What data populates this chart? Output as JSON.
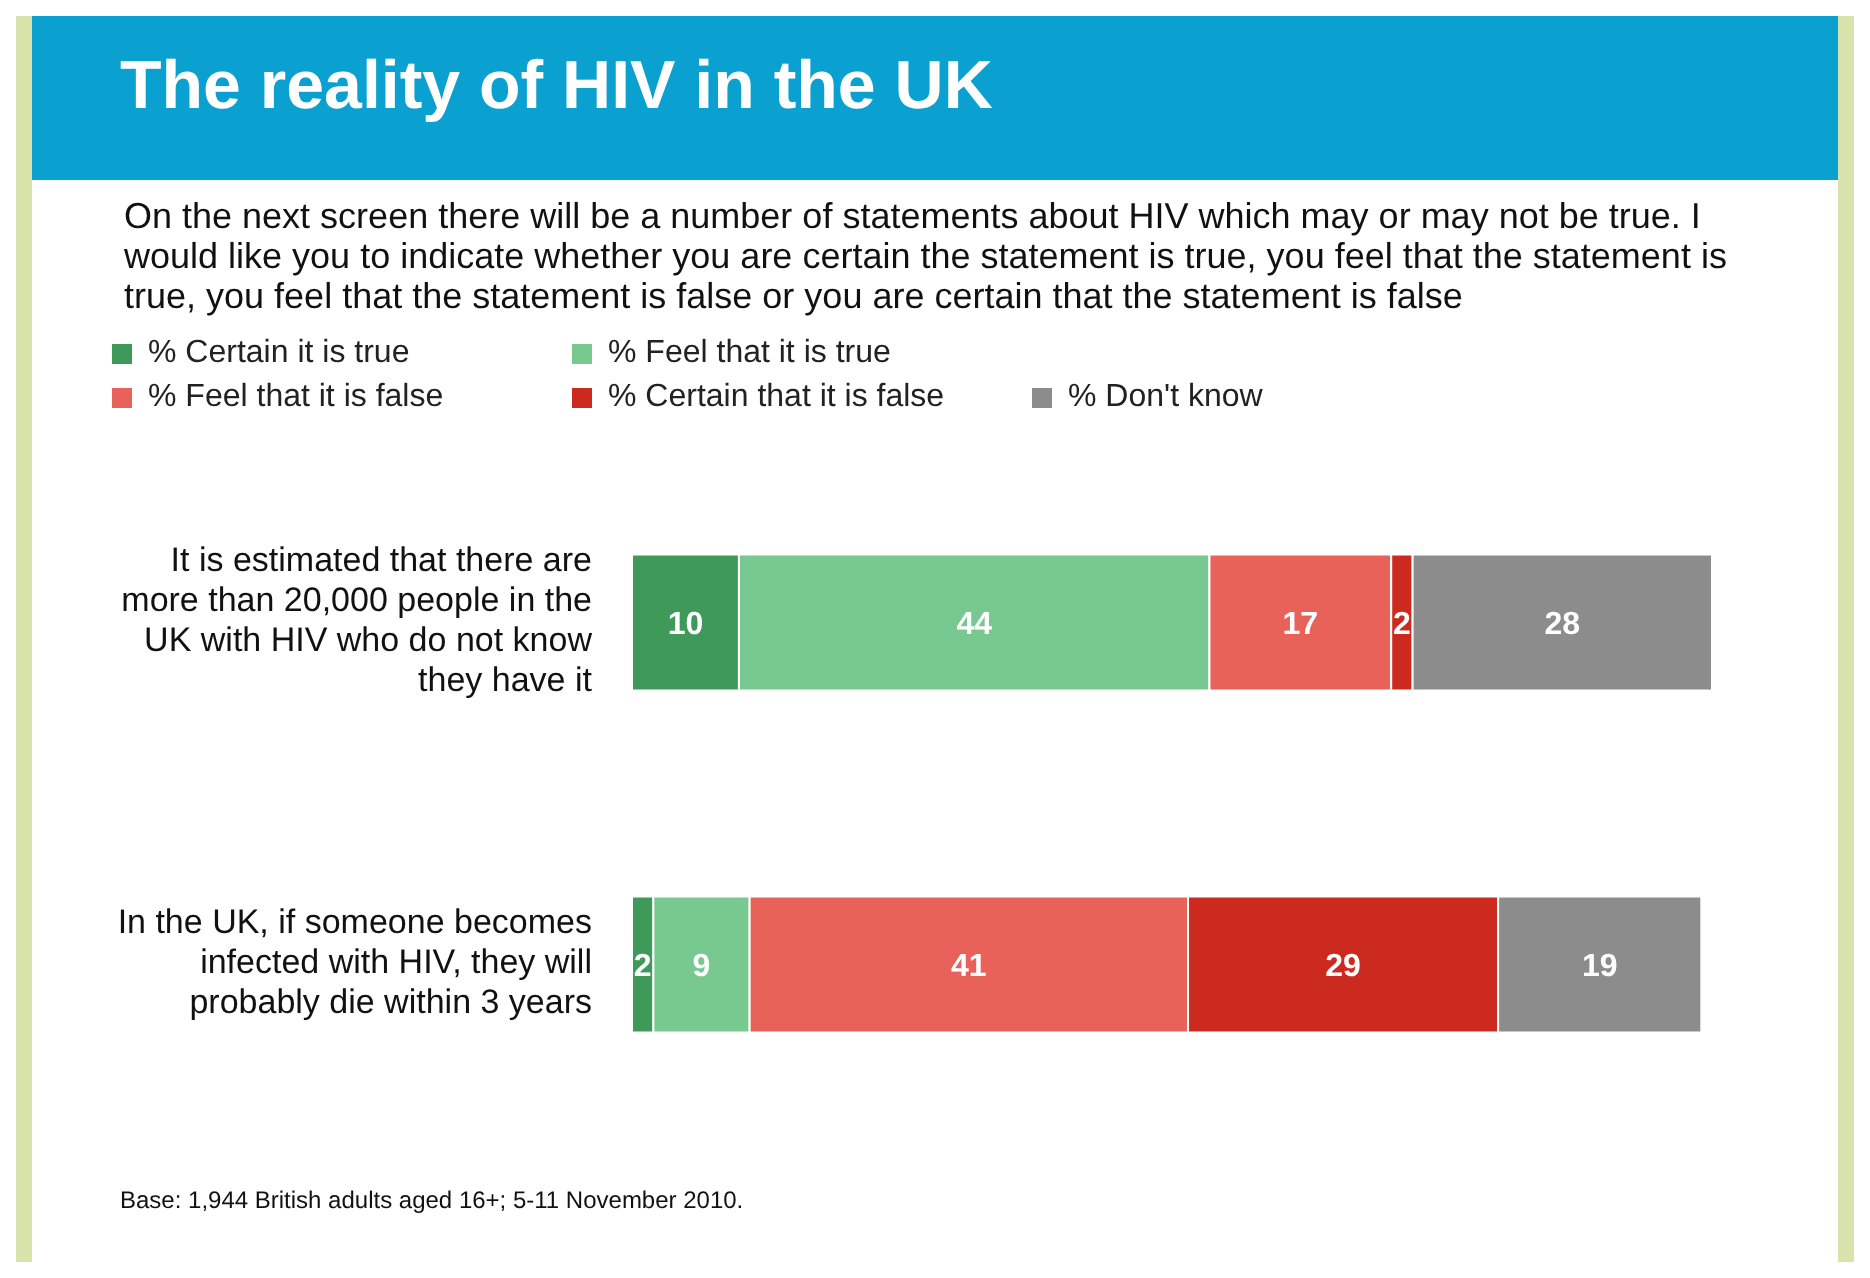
{
  "chart_data": {
    "type": "bar",
    "orientation": "horizontal",
    "stacked": true,
    "data_labels": true,
    "legend": "top left",
    "title": "The reality of HIV in the UK",
    "subtitle": "On the next screen there will be a number of statements about HIV which may or may not be true.  I would like you to indicate whether you are certain the statement is true, you feel that the statement is true, you feel that the statement is false or you are certain that the statement is false",
    "categories": [
      "It is estimated that there are more than 20,000 people in the UK with HIV who do not know they have it",
      "In the UK, if someone becomes infected with HIV, they will probably die within 3 years"
    ],
    "series": [
      {
        "name": "% Certain it is true",
        "color": "#3f9a5a",
        "values": [
          10,
          2
        ]
      },
      {
        "name": "% Feel that it is true",
        "color": "#77c98f",
        "values": [
          44,
          9
        ]
      },
      {
        "name": "% Feel that it is false",
        "color": "#e8625a",
        "values": [
          17,
          41
        ]
      },
      {
        "name": "% Certain that it is false",
        "color": "#cc2a1f",
        "values": [
          2,
          29
        ]
      },
      {
        "name": "% Don't know",
        "color": "#8c8c8c",
        "values": [
          28,
          19
        ]
      }
    ],
    "annotations": [
      "Base: 1,944 British adults aged 16+; 5-11 November 2010."
    ]
  }
}
